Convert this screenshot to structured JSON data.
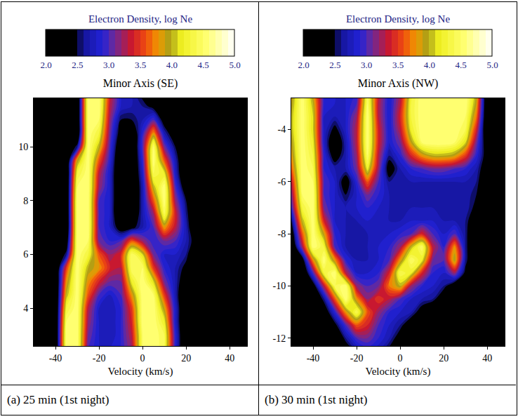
{
  "chart_data": [
    {
      "type": "contour",
      "title": "Minor Axis (SE)",
      "caption": "(a) 25 min (1st night)",
      "x_label": "Velocity (km/s)",
      "x": [
        -50,
        -45,
        -40,
        -35,
        -30,
        -25,
        -20,
        -15,
        -10,
        -5,
        0,
        5,
        10,
        15,
        20,
        25,
        30,
        35,
        40,
        45,
        50
      ],
      "y": [
        2.5,
        3,
        3.5,
        4,
        4.5,
        5,
        5.5,
        6,
        6.5,
        7,
        7.5,
        8,
        8.5,
        9,
        9.5,
        10,
        10.5,
        11,
        11.5,
        12
      ],
      "z": [
        [
          2,
          2,
          2,
          4.6,
          4.6,
          3.0,
          2.8,
          2.8,
          2.9,
          3.2,
          4.5,
          4.6,
          4.4,
          2.9,
          2,
          2,
          2,
          2,
          2,
          2,
          2
        ],
        [
          2,
          2,
          2,
          4.6,
          4.6,
          3.1,
          2.8,
          2.7,
          2.9,
          3.3,
          4.5,
          4.6,
          4.4,
          2.9,
          2,
          2,
          2,
          2,
          2,
          2,
          2
        ],
        [
          2,
          2,
          2,
          4.5,
          4.6,
          3.2,
          2.8,
          2.7,
          2.9,
          3.4,
          4.6,
          4.6,
          4.2,
          2.8,
          2,
          2,
          2,
          2,
          2,
          2,
          2
        ],
        [
          2,
          2,
          2,
          4.3,
          4.6,
          3.3,
          2.8,
          2.7,
          2.9,
          3.5,
          4.6,
          4.6,
          3.9,
          2.8,
          2,
          2,
          2,
          2,
          2,
          2,
          2
        ],
        [
          2,
          2,
          2,
          4.0,
          4.6,
          3.6,
          3.0,
          2.8,
          3.0,
          3.8,
          4.6,
          4.5,
          3.5,
          2.7,
          2,
          2,
          2,
          2,
          2,
          2,
          2
        ],
        [
          2,
          2,
          2,
          3.8,
          4.6,
          3.8,
          3.4,
          3.1,
          3.1,
          4.2,
          4.6,
          4.1,
          3.1,
          2.7,
          2.2,
          2,
          2,
          2,
          2,
          2,
          2
        ],
        [
          2,
          2,
          2,
          3.5,
          4.6,
          4.0,
          3.8,
          3.4,
          3.3,
          4.5,
          4.5,
          3.5,
          2.9,
          2.7,
          2.4,
          2,
          2,
          2,
          2,
          2,
          2
        ],
        [
          2,
          2,
          2,
          2.6,
          4.6,
          4.3,
          3.6,
          3.2,
          3.4,
          4.5,
          4.1,
          3.1,
          2.8,
          2.8,
          2.6,
          2,
          2,
          2,
          2,
          2,
          2
        ],
        [
          2,
          2,
          2,
          2.2,
          4.6,
          4.5,
          3.1,
          2.9,
          3.0,
          3.6,
          3.2,
          2.9,
          3.1,
          3.0,
          2.7,
          2.3,
          2,
          2,
          2,
          2,
          2
        ],
        [
          2,
          2,
          2,
          2,
          4.6,
          4.6,
          3.0,
          2.8,
          2.3,
          2.4,
          2.7,
          3.0,
          3.8,
          3.3,
          2.7,
          2,
          2,
          2,
          2,
          2,
          2
        ],
        [
          2,
          2,
          2,
          2,
          4.6,
          4.6,
          3.0,
          2.8,
          2,
          2.1,
          2.7,
          3.2,
          4.4,
          3.4,
          2.6,
          2,
          2,
          2,
          2,
          2,
          2
        ],
        [
          2,
          2,
          2,
          2,
          4.6,
          4.6,
          3.0,
          2.8,
          2,
          2,
          2.7,
          3.6,
          4.6,
          3.2,
          2.5,
          2,
          2,
          2,
          2,
          2,
          2
        ],
        [
          2,
          2,
          2,
          2,
          4.5,
          4.6,
          3.2,
          2.8,
          2,
          2,
          2.7,
          4.0,
          4.6,
          3.0,
          2.2,
          2,
          2,
          2,
          2,
          2,
          2
        ],
        [
          2,
          2,
          2,
          2,
          4.3,
          4.6,
          3.3,
          2.8,
          2,
          2,
          2.8,
          4.4,
          4.2,
          2.8,
          2,
          2,
          2,
          2,
          2,
          2,
          2
        ],
        [
          2,
          2,
          2,
          2,
          3.9,
          4.6,
          3.6,
          2.9,
          2,
          2,
          2.9,
          4.6,
          3.6,
          2.7,
          2,
          2,
          2,
          2,
          2,
          2,
          2
        ],
        [
          2,
          2,
          2,
          2,
          2.6,
          4.6,
          4.0,
          3.0,
          2.1,
          2,
          3.0,
          4.5,
          3.1,
          2.5,
          2,
          2,
          2,
          2,
          2,
          2,
          2
        ],
        [
          2,
          2,
          2,
          2,
          2,
          4.6,
          4.3,
          3.1,
          2.3,
          2.1,
          2.9,
          3.8,
          2.7,
          2.2,
          2,
          2,
          2,
          2,
          2,
          2,
          2
        ],
        [
          2,
          2,
          2,
          2,
          2,
          4.6,
          4.5,
          3.2,
          2.5,
          2.5,
          2.7,
          3.0,
          2.3,
          2,
          2,
          2,
          2,
          2,
          2,
          2,
          2
        ],
        [
          2,
          2,
          2,
          2,
          2,
          4.6,
          4.6,
          3.3,
          2.8,
          2.7,
          2.6,
          2.4,
          2,
          2,
          2,
          2,
          2,
          2,
          2,
          2,
          2
        ],
        [
          2,
          2,
          2,
          2,
          2,
          4.6,
          4.6,
          3.4,
          2.8,
          2.7,
          2.4,
          2,
          2,
          2,
          2,
          2,
          2,
          2,
          2,
          2,
          2
        ]
      ],
      "xlim": [
        -50,
        48
      ],
      "xticks": [
        -40,
        -20,
        0,
        20,
        40
      ],
      "ylim": [
        2.6,
        11.8
      ],
      "yticks": [
        4,
        6,
        8,
        10
      ],
      "colorbar": {
        "title": "Electron Density, log Ne",
        "range": [
          2,
          5
        ],
        "ticks": [
          {
            "value": 2,
            "label": "2.0"
          },
          {
            "value": 2.5,
            "label": "2.5"
          },
          {
            "value": 3,
            "label": "3.0"
          },
          {
            "value": 3.5,
            "label": "3.5"
          },
          {
            "value": 4,
            "label": "4.0"
          },
          {
            "value": 4.5,
            "label": "4.5"
          },
          {
            "value": 5,
            "label": "5.0"
          }
        ]
      }
    },
    {
      "type": "contour",
      "title": "Minor Axis (NW)",
      "caption": "(b) 30  min (1st night)",
      "x_label": "Velocity (km/s)",
      "x": [
        -50,
        -45,
        -40,
        -35,
        -30,
        -25,
        -20,
        -15,
        -10,
        -5,
        0,
        5,
        10,
        15,
        20,
        25,
        30,
        35,
        40,
        45,
        50
      ],
      "y": [
        -12.5,
        -12,
        -11.5,
        -11,
        -10.5,
        -10,
        -9.5,
        -9,
        -8.5,
        -8,
        -7.5,
        -7,
        -6.5,
        -6,
        -5.5,
        -5,
        -4.5,
        -4,
        -3.5,
        -3,
        -2.5
      ],
      "z": [
        [
          2,
          2,
          2,
          2,
          2,
          2.2,
          2.6,
          2.8,
          2.7,
          2.4,
          2,
          2,
          2,
          2,
          2,
          2,
          2,
          2,
          2,
          2,
          2
        ],
        [
          2,
          2,
          2,
          2,
          2,
          2.6,
          3.0,
          3.1,
          2.9,
          2.7,
          2.3,
          2,
          2,
          2,
          2,
          2,
          2,
          2,
          2,
          2,
          2
        ],
        [
          2,
          2,
          2,
          2,
          2.4,
          3.0,
          3.6,
          3.4,
          3.0,
          2.8,
          2.6,
          2.2,
          2,
          2,
          2,
          2,
          2,
          2,
          2,
          2,
          2
        ],
        [
          2,
          2,
          2,
          2.2,
          2.9,
          3.8,
          4.4,
          3.6,
          3.2,
          2.9,
          2.8,
          2.7,
          2.3,
          2,
          2,
          2,
          2,
          2,
          2,
          2,
          2
        ],
        [
          2,
          2,
          2,
          2.6,
          3.6,
          4.6,
          3.8,
          3.2,
          3.5,
          3.3,
          3.0,
          2.8,
          2.7,
          2.6,
          2.2,
          2,
          2,
          2,
          2,
          2,
          2
        ],
        [
          2,
          2,
          2.3,
          3.3,
          4.4,
          4.6,
          3.2,
          3.0,
          3.1,
          3.7,
          4.0,
          3.2,
          2.9,
          2.8,
          2.6,
          2.2,
          2,
          2,
          2,
          2,
          2
        ],
        [
          2,
          2,
          3.0,
          4.3,
          4.6,
          3.3,
          2.8,
          2.8,
          2.9,
          3.4,
          4.4,
          4.2,
          3.4,
          2.9,
          2.8,
          3.2,
          2.4,
          2,
          2,
          2,
          2
        ],
        [
          2,
          2.3,
          3.8,
          4.6,
          3.8,
          2.9,
          2.7,
          2.7,
          2.8,
          3.0,
          3.8,
          4.5,
          4.2,
          3.1,
          3.0,
          4.0,
          2.6,
          2,
          2,
          2,
          2
        ],
        [
          2,
          3.2,
          4.6,
          4.3,
          3.0,
          2.7,
          2.7,
          2.7,
          2.8,
          2.9,
          3.2,
          4.0,
          4.5,
          3.3,
          2.9,
          3.8,
          2.6,
          2,
          2,
          2,
          2
        ],
        [
          2.2,
          3.6,
          4.6,
          3.9,
          2.9,
          2.7,
          2.7,
          2.7,
          2.8,
          2.8,
          2.9,
          3.0,
          3.4,
          3.0,
          2.8,
          3.0,
          2.6,
          2,
          2,
          2,
          2
        ],
        [
          2.5,
          4.0,
          4.6,
          3.4,
          2.8,
          2.7,
          2.7,
          2.8,
          2.8,
          2.7,
          2.7,
          2.8,
          2.8,
          2.8,
          2.7,
          2.7,
          2.6,
          2.2,
          2,
          2,
          2
        ],
        [
          2.9,
          4.3,
          4.6,
          3.1,
          2.8,
          2.7,
          2.8,
          2.9,
          2.8,
          2.7,
          2.7,
          2.7,
          2.7,
          2.7,
          2.7,
          2.7,
          2.7,
          2.4,
          2,
          2,
          2
        ],
        [
          3.1,
          4.5,
          4.6,
          3.0,
          2.8,
          2.5,
          2.8,
          3.1,
          2.9,
          2.7,
          2.7,
          2.7,
          2.7,
          2.7,
          2.7,
          2.7,
          2.7,
          2.5,
          2,
          2,
          2
        ],
        [
          3.3,
          4.6,
          4.5,
          3.0,
          2.8,
          2.3,
          2.9,
          3.6,
          3.0,
          2.6,
          2.7,
          2.7,
          2.7,
          2.7,
          2.7,
          2.7,
          2.7,
          2.6,
          2.1,
          2,
          2
        ],
        [
          3.6,
          4.6,
          4.4,
          2.9,
          2.7,
          2.7,
          3.1,
          4.2,
          3.2,
          2.3,
          2.7,
          2.9,
          3.0,
          3.1,
          3.1,
          3.0,
          2.9,
          2.7,
          2.2,
          2,
          2
        ],
        [
          3.8,
          4.6,
          4.3,
          2.9,
          2.3,
          2.7,
          3.2,
          4.5,
          3.3,
          2.6,
          2.9,
          3.4,
          3.8,
          4.0,
          4.0,
          3.9,
          3.5,
          2.9,
          2.3,
          2,
          2
        ],
        [
          3.9,
          4.6,
          4.2,
          2.8,
          2.1,
          2.7,
          3.3,
          4.6,
          3.4,
          2.8,
          3.1,
          3.9,
          4.5,
          4.6,
          4.6,
          4.5,
          4.1,
          3.1,
          2.2,
          2,
          2
        ],
        [
          4.0,
          4.6,
          4.1,
          2.8,
          2.4,
          2.8,
          3.3,
          4.6,
          3.4,
          2.8,
          3.3,
          4.2,
          4.6,
          4.6,
          4.6,
          4.6,
          4.4,
          3.4,
          2,
          2,
          2
        ],
        [
          4.0,
          4.6,
          4.1,
          2.8,
          2.7,
          2.8,
          3.2,
          4.6,
          3.3,
          2.8,
          3.4,
          4.3,
          4.6,
          4.6,
          4.6,
          4.6,
          4.5,
          3.7,
          2,
          2,
          2
        ],
        [
          3.9,
          4.6,
          4.0,
          2.9,
          2.8,
          2.8,
          3.0,
          4.5,
          3.3,
          2.8,
          3.3,
          4.3,
          4.6,
          4.6,
          4.6,
          4.6,
          4.6,
          3.9,
          2,
          2,
          2
        ],
        [
          3.8,
          4.6,
          3.8,
          2.9,
          2.8,
          2.8,
          2.9,
          4.4,
          3.4,
          2.8,
          3.2,
          4.2,
          4.6,
          4.6,
          4.6,
          4.6,
          4.6,
          4.0,
          2,
          2,
          2
        ]
      ],
      "xlim": [
        -50,
        48
      ],
      "xticks": [
        -40,
        -20,
        0,
        20,
        40
      ],
      "ylim": [
        -12.3,
        -2.8
      ],
      "yticks": [
        -12,
        -10,
        -8,
        -6,
        -4
      ],
      "colorbar": {
        "title": "Electron Density, log Ne",
        "range": [
          2,
          5
        ],
        "ticks": [
          {
            "value": 2,
            "label": "2.0"
          },
          {
            "value": 2.5,
            "label": "2.5"
          },
          {
            "value": 3,
            "label": "3.0"
          },
          {
            "value": 3.5,
            "label": "3.5"
          },
          {
            "value": 4,
            "label": "4.0"
          },
          {
            "value": 4.5,
            "label": "4.5"
          },
          {
            "value": 5,
            "label": "5.0"
          }
        ]
      }
    }
  ]
}
